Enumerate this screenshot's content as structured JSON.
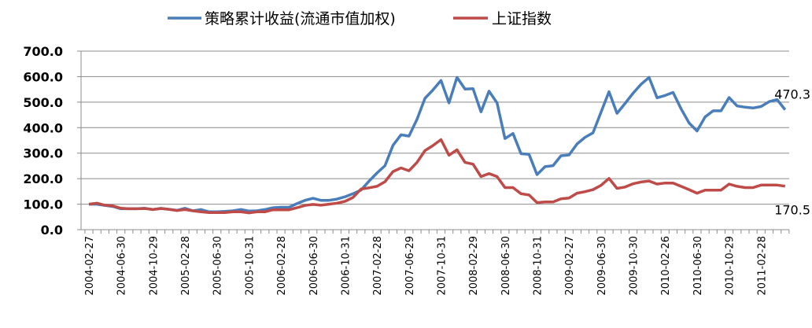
{
  "chart_data": {
    "type": "line",
    "title": "",
    "xlabel": "",
    "ylabel": "",
    "ylim": [
      0,
      700
    ],
    "y_ticks": [
      "0.0",
      "100.0",
      "200.0",
      "300.0",
      "400.0",
      "500.0",
      "600.0",
      "700.0"
    ],
    "grid": "horizontal",
    "legend_position": "top",
    "x": [
      "2004-02",
      "2004-03",
      "2004-04",
      "2004-05",
      "2004-06",
      "2004-07",
      "2004-08",
      "2004-09",
      "2004-10",
      "2004-11",
      "2004-12",
      "2005-01",
      "2005-02",
      "2005-03",
      "2005-04",
      "2005-05",
      "2005-06",
      "2005-07",
      "2005-08",
      "2005-09",
      "2005-10",
      "2005-11",
      "2005-12",
      "2006-01",
      "2006-02",
      "2006-03",
      "2006-04",
      "2006-05",
      "2006-06",
      "2006-07",
      "2006-08",
      "2006-09",
      "2006-10",
      "2006-11",
      "2006-12",
      "2007-01",
      "2007-02",
      "2007-03",
      "2007-04",
      "2007-05",
      "2007-06",
      "2007-07",
      "2007-08",
      "2007-09",
      "2007-10",
      "2007-11",
      "2007-12",
      "2008-01",
      "2008-02",
      "2008-03",
      "2008-04",
      "2008-05",
      "2008-06",
      "2008-07",
      "2008-08",
      "2008-09",
      "2008-10",
      "2008-11",
      "2008-12",
      "2009-01",
      "2009-02",
      "2009-03",
      "2009-04",
      "2009-05",
      "2009-06",
      "2009-07",
      "2009-08",
      "2009-09",
      "2009-10",
      "2009-11",
      "2009-12",
      "2010-01",
      "2010-02",
      "2010-03",
      "2010-04",
      "2010-05",
      "2010-06",
      "2010-07",
      "2010-08",
      "2010-09",
      "2010-10",
      "2010-11",
      "2010-12",
      "2011-01",
      "2011-02",
      "2011-03",
      "2011-04",
      "2011-05"
    ],
    "tick_labels": [
      {
        "index": 0,
        "label": "2004-02-27"
      },
      {
        "index": 4,
        "label": "2004-06-30"
      },
      {
        "index": 8,
        "label": "2004-10-29"
      },
      {
        "index": 12,
        "label": "2005-02-28"
      },
      {
        "index": 16,
        "label": "2005-06-30"
      },
      {
        "index": 20,
        "label": "2005-10-31"
      },
      {
        "index": 24,
        "label": "2006-02-28"
      },
      {
        "index": 28,
        "label": "2006-06-30"
      },
      {
        "index": 32,
        "label": "2006-10-31"
      },
      {
        "index": 36,
        "label": "2007-02-28"
      },
      {
        "index": 40,
        "label": "2007-06-29"
      },
      {
        "index": 44,
        "label": "2007-10-31"
      },
      {
        "index": 48,
        "label": "2008-02-29"
      },
      {
        "index": 52,
        "label": "2008-06-30"
      },
      {
        "index": 56,
        "label": "2008-10-31"
      },
      {
        "index": 60,
        "label": "2009-02-27"
      },
      {
        "index": 64,
        "label": "2009-06-30"
      },
      {
        "index": 68,
        "label": "2009-10-30"
      },
      {
        "index": 72,
        "label": "2010-02-26"
      },
      {
        "index": 76,
        "label": "2010-06-30"
      },
      {
        "index": 80,
        "label": "2010-10-29"
      },
      {
        "index": 84,
        "label": "2011-02-28"
      }
    ],
    "series": [
      {
        "name": "策略累计收益(流通市值加权)",
        "color": "#4a7ebb",
        "end_label": "470.3",
        "values": [
          100,
          100,
          95,
          91,
          82,
          82,
          82,
          84,
          79,
          84,
          80,
          76,
          84,
          74,
          79,
          70,
          70,
          72,
          74,
          79,
          73,
          74,
          79,
          86,
          88,
          88,
          102,
          115,
          123,
          115,
          115,
          120,
          129,
          141,
          155,
          190,
          222,
          251,
          331,
          372,
          367,
          433,
          515,
          548,
          585,
          497,
          597,
          551,
          553,
          462,
          543,
          497,
          357,
          377,
          298,
          295,
          216,
          247,
          251,
          290,
          293,
          336,
          362,
          380,
          461,
          541,
          456,
          495,
          535,
          570,
          597,
          517,
          526,
          538,
          474,
          418,
          387,
          442,
          466,
          466,
          518,
          485,
          480,
          477,
          483,
          502,
          510,
          470.3
        ]
      },
      {
        "name": "上证指数",
        "color": "#be4b48",
        "end_label": "170.5",
        "values": [
          100,
          104,
          96,
          93,
          84,
          82,
          82,
          83,
          79,
          83,
          80,
          75,
          79,
          74,
          70,
          67,
          67,
          67,
          70,
          70,
          66,
          70,
          70,
          78,
          78,
          78,
          86,
          95,
          99,
          96,
          100,
          104,
          111,
          126,
          159,
          164,
          170,
          188,
          228,
          242,
          231,
          264,
          310,
          330,
          353,
          292,
          313,
          264,
          257,
          208,
          220,
          208,
          165,
          165,
          141,
          136,
          106,
          109,
          109,
          121,
          124,
          143,
          149,
          157,
          174,
          201,
          162,
          167,
          180,
          187,
          191,
          179,
          183,
          183,
          170,
          157,
          143,
          155,
          155,
          155,
          179,
          170,
          165,
          165,
          175,
          175,
          175,
          170.5
        ]
      }
    ]
  }
}
